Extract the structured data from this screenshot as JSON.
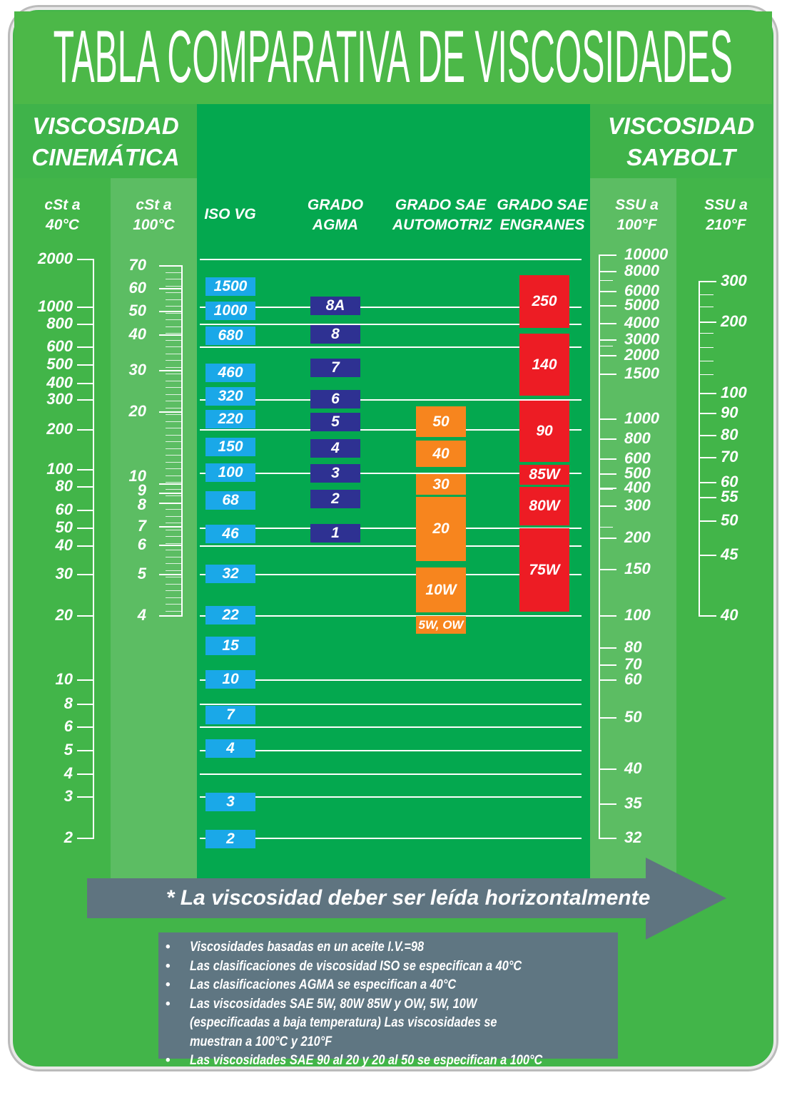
{
  "title": "TABLA COMPARATIVA DE VISCOSIDADES",
  "sections": {
    "left": "VISCOSIDAD CINEMÁTICA",
    "right": "VISCOSIDAD SAYBOLT"
  },
  "columns": [
    {
      "key": "cst40",
      "header": "cSt a\n40°C"
    },
    {
      "key": "cst100",
      "header": "cSt a\n100°C"
    },
    {
      "key": "iso",
      "header": "ISO VG"
    },
    {
      "key": "agma",
      "header": "GRADO\nAGMA"
    },
    {
      "key": "sae_auto",
      "header": "GRADO SAE\nAUTOMOTRIZ"
    },
    {
      "key": "sae_gear",
      "header": "GRADO SAE\nENGRANES"
    },
    {
      "key": "ssu100",
      "header": "SSU a\n100°F"
    },
    {
      "key": "ssu210",
      "header": "SSU a\n210°F"
    }
  ],
  "scales": {
    "cst40": [
      "2000",
      "1000",
      "800",
      "600",
      "500",
      "400",
      "300",
      "200",
      "100",
      "80",
      "60",
      "50",
      "40",
      "30",
      "20",
      "10",
      "8",
      "6",
      "5",
      "4",
      "3",
      "2"
    ],
    "cst100": [
      "70",
      "60",
      "50",
      "40",
      "30",
      "20",
      "10",
      "9",
      "8",
      "7",
      "6",
      "5",
      "4"
    ],
    "ssu100": [
      "10000",
      "8000",
      "6000",
      "5000",
      "4000",
      "3000",
      "2000",
      "1500",
      "1000",
      "800",
      "600",
      "500",
      "400",
      "300",
      "200",
      "150",
      "100",
      "80",
      "70",
      "60",
      "50",
      "40",
      "35",
      "32"
    ],
    "ssu210": [
      "300",
      "200",
      "100",
      "90",
      "80",
      "70",
      "60",
      "55",
      "50",
      "45",
      "40"
    ]
  },
  "iso_vg": [
    "1500",
    "1000",
    "680",
    "460",
    "320",
    "220",
    "150",
    "100",
    "68",
    "46",
    "32",
    "22",
    "15",
    "10",
    "7",
    "4",
    "3",
    "2"
  ],
  "agma": [
    "8A",
    "8",
    "7",
    "6",
    "5",
    "4",
    "3",
    "2",
    "1"
  ],
  "sae_auto": [
    "50",
    "40",
    "30",
    "20",
    "10W",
    "5W, OW"
  ],
  "sae_gear": [
    "250",
    "140",
    "90",
    "85W",
    "80W",
    "75W"
  ],
  "colors": {
    "iso": "#1aa8e8",
    "agma": "#2e3192",
    "sae_auto": "#f7851e",
    "sae_gear": "#ed1c24",
    "background": "#42b549",
    "center": "#04a84f",
    "stripe": "#5cbd63",
    "arrow": "#5f7480"
  },
  "arrow_text": "* La viscosidad deber ser leída horizontalmente",
  "notes": [
    "Viscosidades basadas en un aceite I.V.=98",
    "Las clasificaciones de viscosidad ISO se especifican a 40°C",
    "Las clasificaciones AGMA se especifican a 40°C",
    "Las viscosidades SAE 5W, 80W 85W y OW, 5W, 10W (especificadas a baja temperatura) Las viscosidades se muestran a 100°C y 210°F",
    "Las viscosidades SAE 90 al 20 y 20 al 50 se especifican a 100°C"
  ]
}
